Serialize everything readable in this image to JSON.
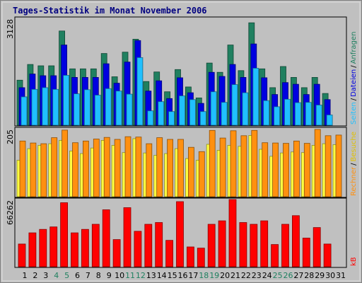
{
  "title": "Tages-Statistik im Monat November 2006",
  "colors": {
    "panel": "#c0c0c0",
    "anfragen": "#208060",
    "dateien": "#0000e0",
    "seiten": "#20c0ff",
    "besuche": "#ffff40",
    "rechner": "#ff9010",
    "kb": "#ff0000",
    "title": "#000080",
    "weekend_tick": "#208060"
  },
  "legend": {
    "top": [
      {
        "label": "Anfragen",
        "color": "#208060"
      },
      {
        "label": "Dateien",
        "color": "#0000e0"
      },
      {
        "label": "Seiten",
        "color": "#20c0ff"
      }
    ],
    "middle": [
      {
        "label": "Rechner",
        "color": "#ff9010"
      },
      {
        "label": "Besuche",
        "color": "#e0c000"
      }
    ],
    "bottom": [
      {
        "label": "kB",
        "color": "#ff0000"
      }
    ],
    "separator": "/"
  },
  "chart_data": [
    {
      "type": "bar",
      "panel": "Anfragen / Dateien / Seiten",
      "ymax_label": "3128",
      "ylim": [
        0,
        3128
      ],
      "categories": [
        "1",
        "2",
        "3",
        "4",
        "5",
        "6",
        "7",
        "8",
        "9",
        "10",
        "11",
        "12",
        "13",
        "14",
        "15",
        "16",
        "17",
        "18",
        "19",
        "20",
        "21",
        "22",
        "23",
        "24",
        "25",
        "26",
        "27",
        "28",
        "29",
        "30",
        "31"
      ],
      "weekend_days": [
        "4",
        "5",
        "11",
        "12",
        "18",
        "19",
        "25",
        "26"
      ],
      "series": [
        {
          "name": "Anfragen",
          "values": [
            1320,
            1780,
            1740,
            1740,
            2760,
            1650,
            1650,
            1650,
            2100,
            1420,
            2140,
            2520,
            1280,
            1560,
            980,
            1630,
            1120,
            800,
            1820,
            1550,
            2350,
            1600,
            3000,
            1650,
            1100,
            1720,
            1400,
            1100,
            1400,
            930,
            0
          ]
        },
        {
          "name": "Dateien",
          "values": [
            1100,
            1500,
            1450,
            1450,
            2350,
            1400,
            1400,
            1400,
            1800,
            1230,
            1850,
            2480,
            1000,
            1300,
            780,
            1390,
            950,
            640,
            1550,
            1430,
            1780,
            1400,
            2380,
            1390,
            900,
            1250,
            1200,
            900,
            1200,
            750,
            0
          ]
        },
        {
          "name": "Seiten",
          "values": [
            830,
            1050,
            1100,
            1050,
            1460,
            920,
            1040,
            880,
            1070,
            1000,
            910,
            1980,
            420,
            690,
            400,
            860,
            750,
            400,
            980,
            670,
            1190,
            950,
            1670,
            720,
            540,
            760,
            660,
            670,
            590,
            300,
            0
          ]
        }
      ]
    },
    {
      "type": "bar",
      "panel": "Rechner / Besuche",
      "ymax_label": "205",
      "ylim": [
        0,
        205
      ],
      "categories": [
        "1",
        "2",
        "3",
        "4",
        "5",
        "6",
        "7",
        "8",
        "9",
        "10",
        "11",
        "12",
        "13",
        "14",
        "15",
        "16",
        "17",
        "18",
        "19",
        "20",
        "21",
        "22",
        "23",
        "24",
        "25",
        "26",
        "27",
        "28",
        "29",
        "30",
        "31"
      ],
      "series": [
        {
          "name": "Rechner",
          "values": [
            168,
            162,
            160,
            178,
            201,
            163,
            168,
            174,
            179,
            173,
            181,
            180,
            160,
            178,
            173,
            173,
            149,
            136,
            200,
            177,
            199,
            184,
            200,
            163,
            162,
            161,
            168,
            161,
            203,
            184,
            186
          ]
        },
        {
          "name": "Besuche",
          "values": [
            110,
            145,
            155,
            160,
            170,
            138,
            130,
            147,
            170,
            155,
            133,
            175,
            132,
            125,
            130,
            145,
            115,
            110,
            158,
            140,
            155,
            152,
            185,
            143,
            122,
            132,
            135,
            133,
            155,
            160,
            157
          ]
        }
      ]
    },
    {
      "type": "bar",
      "panel": "kB",
      "ymax_label": "66262",
      "ylim": [
        0,
        66262
      ],
      "categories": [
        "1",
        "2",
        "3",
        "4",
        "5",
        "6",
        "7",
        "8",
        "9",
        "10",
        "11",
        "12",
        "13",
        "14",
        "15",
        "16",
        "17",
        "18",
        "19",
        "20",
        "21",
        "22",
        "23",
        "24",
        "25",
        "26",
        "27",
        "28",
        "29",
        "30",
        "31"
      ],
      "series": [
        {
          "name": "kB",
          "values": [
            22380,
            33430,
            36840,
            39260,
            63090,
            33430,
            36840,
            41880,
            56130,
            26780,
            58240,
            34950,
            41880,
            43600,
            26010,
            64200,
            19550,
            18320,
            41880,
            45290,
            66262,
            43600,
            41880,
            45290,
            21880,
            41880,
            50360,
            28260,
            38620,
            22380,
            0
          ]
        }
      ]
    }
  ]
}
